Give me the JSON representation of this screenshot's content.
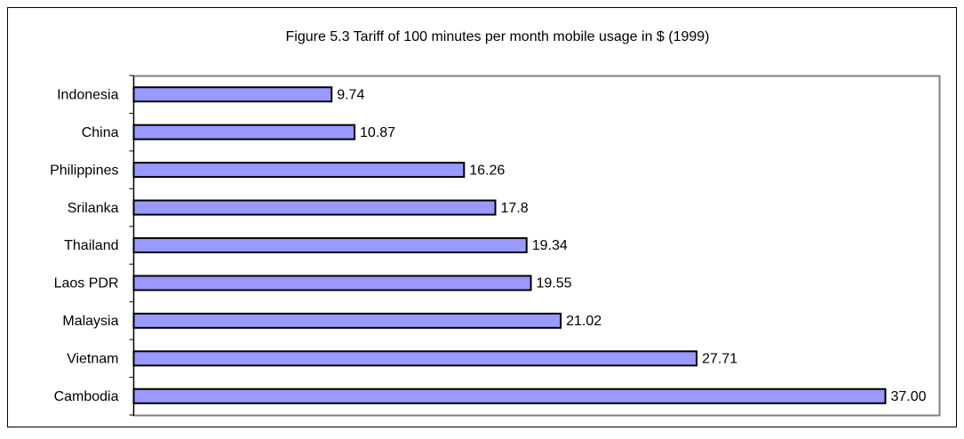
{
  "chart_data": {
    "type": "barh",
    "title": "Figure 5.3 Tariff of 100 minutes per month mobile usage in $ (1999)",
    "categories": [
      "Indonesia",
      "China",
      "Philippines",
      "Srilanka",
      "Thailand",
      "Laos PDR",
      "Malaysia",
      "Vietnam",
      "Cambodia"
    ],
    "values": [
      9.74,
      10.87,
      16.26,
      17.8,
      19.34,
      19.55,
      21.02,
      27.71,
      37
    ],
    "value_labels": [
      "9.74",
      "10.87",
      "16.26",
      "17.8",
      "19.34",
      "19.55",
      "21.02",
      "27.71",
      "37.00"
    ],
    "color": "#9999ff"
  }
}
